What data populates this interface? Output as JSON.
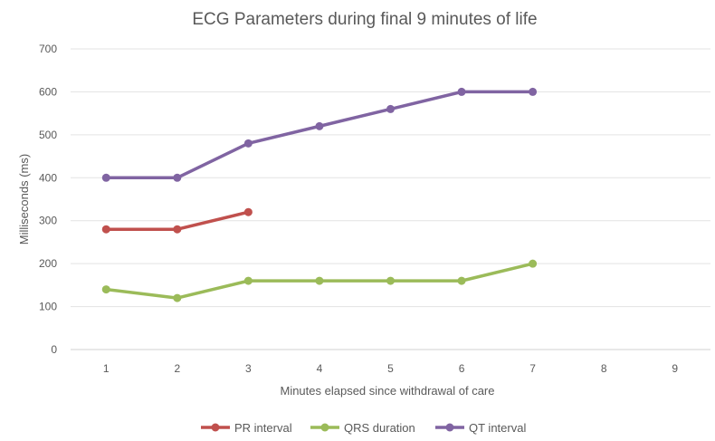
{
  "chart_data": {
    "type": "line",
    "title": "ECG Parameters during final 9 minutes of life",
    "xlabel": "Minutes elapsed since withdrawal of care",
    "ylabel": "Milliseconds (ms)",
    "categories": [
      "1",
      "2",
      "3",
      "4",
      "5",
      "6",
      "7",
      "8",
      "9"
    ],
    "ylim": [
      0,
      700
    ],
    "yticks": [
      0,
      100,
      200,
      300,
      400,
      500,
      600,
      700
    ],
    "grid": true,
    "legend_position": "bottom",
    "series": [
      {
        "name": "PR interval",
        "color": "#C0504D",
        "values": [
          280,
          280,
          320,
          null,
          null,
          null,
          null,
          null,
          null
        ]
      },
      {
        "name": "QRS duration",
        "color": "#9BBB59",
        "values": [
          140,
          120,
          160,
          160,
          160,
          160,
          200,
          null,
          null
        ]
      },
      {
        "name": "QT interval",
        "color": "#8064A2",
        "values": [
          400,
          400,
          480,
          520,
          560,
          600,
          600,
          null,
          null
        ]
      }
    ]
  }
}
